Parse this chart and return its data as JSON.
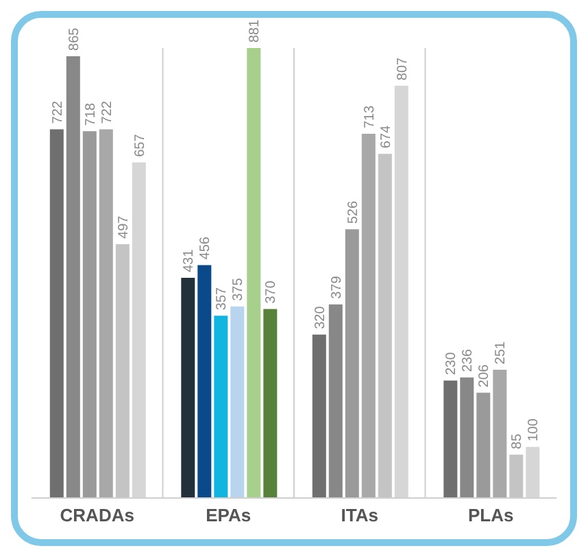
{
  "chart_data": {
    "type": "bar",
    "categories": [
      "CRADAs",
      "EPAs",
      "ITAs",
      "PLAs"
    ],
    "series": [
      {
        "colors": [
          "#6f6f6f",
          "#22303c",
          "#6f6f6f",
          "#6f6f6f"
        ],
        "values": [
          722,
          431,
          320,
          230
        ]
      },
      {
        "colors": [
          "#888888",
          "#0a4a8a",
          "#888888",
          "#888888"
        ],
        "values": [
          865,
          456,
          379,
          236
        ]
      },
      {
        "colors": [
          "#9a9a9a",
          "#12b5e0",
          "#9a9a9a",
          "#9a9a9a"
        ],
        "values": [
          718,
          357,
          526,
          206
        ]
      },
      {
        "colors": [
          "#a8a8a8",
          "#b8d4ee",
          "#a8a8a8",
          "#a8a8a8"
        ],
        "values": [
          722,
          375,
          713,
          251
        ]
      },
      {
        "colors": [
          "#c4c4c4",
          "#a6d08c",
          "#c4c4c4",
          "#c4c4c4"
        ],
        "values": [
          497,
          881,
          674,
          85
        ]
      },
      {
        "colors": [
          "#d6d6d6",
          "#58823a",
          "#d6d6d6",
          "#d6d6d6"
        ],
        "values": [
          657,
          370,
          807,
          100
        ]
      }
    ],
    "data_labels": true,
    "grid": "x"
  }
}
